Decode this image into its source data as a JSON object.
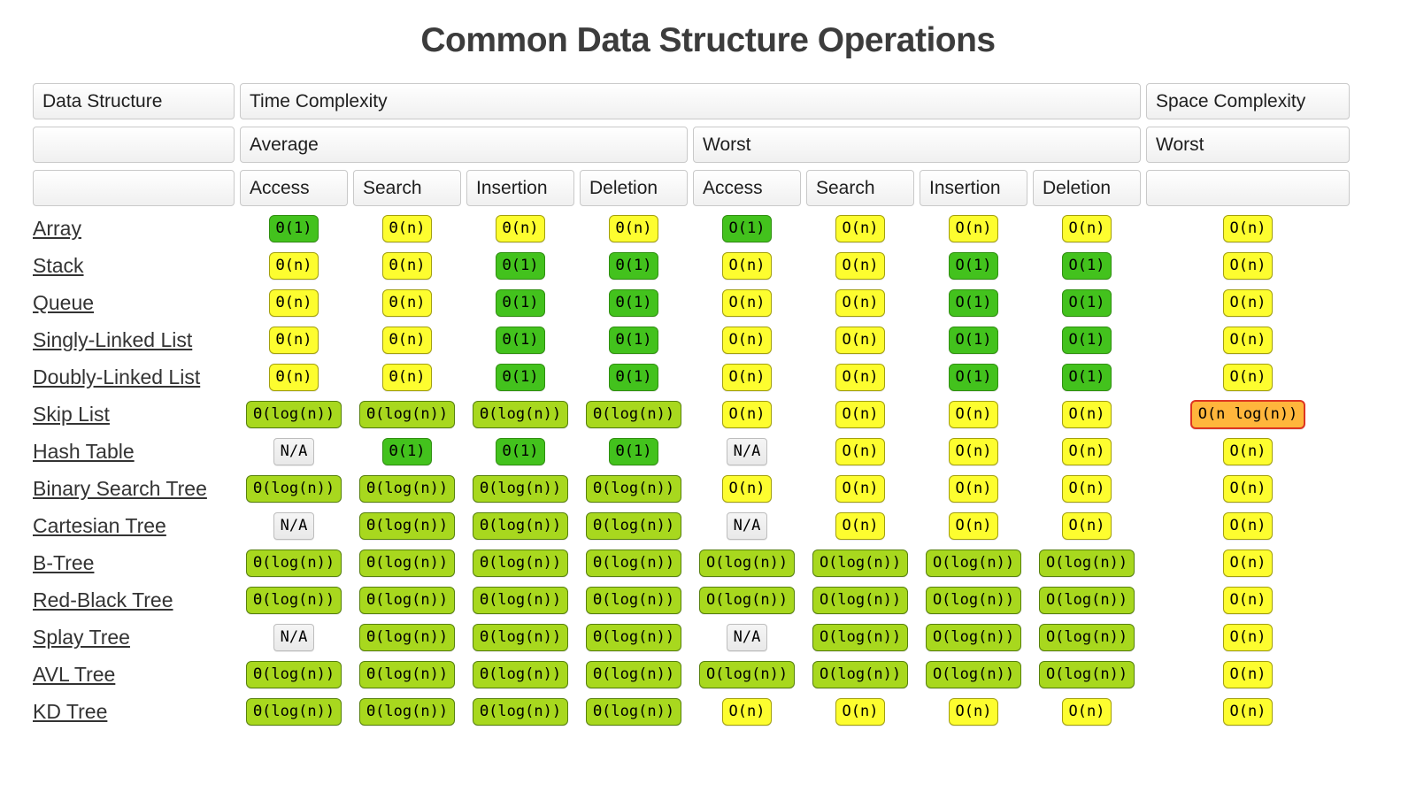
{
  "title": "Common Data Structure Operations",
  "colors": {
    "green_bg": "#43c21d",
    "green_border": "#2f8f10",
    "yellow_bg": "#fdfd2f",
    "yellow_border": "#a3a00e",
    "lightgreen_bg": "#a8d81e",
    "lightgreen_border": "#57810d",
    "orange_bg": "#ffb63c",
    "orange_border": "#dd3522",
    "na_bg": "#e9e9e9",
    "na_border": "#bdbdbd",
    "header_border": "#c9c9c9",
    "link_color": "#333333"
  },
  "table": {
    "header": {
      "data_structure": "Data Structure",
      "time_complexity": "Time Complexity",
      "space_complexity": "Space Complexity",
      "average": "Average",
      "worst": "Worst",
      "space_worst": "Worst",
      "operations": [
        "Access",
        "Search",
        "Insertion",
        "Deletion"
      ]
    },
    "rows": [
      {
        "name": "Array",
        "cells": [
          [
            "Θ(1)",
            "green"
          ],
          [
            "Θ(n)",
            "yellow"
          ],
          [
            "Θ(n)",
            "yellow"
          ],
          [
            "Θ(n)",
            "yellow"
          ],
          [
            "O(1)",
            "green"
          ],
          [
            "O(n)",
            "yellow"
          ],
          [
            "O(n)",
            "yellow"
          ],
          [
            "O(n)",
            "yellow"
          ],
          [
            "O(n)",
            "yellow"
          ]
        ]
      },
      {
        "name": "Stack",
        "cells": [
          [
            "Θ(n)",
            "yellow"
          ],
          [
            "Θ(n)",
            "yellow"
          ],
          [
            "Θ(1)",
            "green"
          ],
          [
            "Θ(1)",
            "green"
          ],
          [
            "O(n)",
            "yellow"
          ],
          [
            "O(n)",
            "yellow"
          ],
          [
            "O(1)",
            "green"
          ],
          [
            "O(1)",
            "green"
          ],
          [
            "O(n)",
            "yellow"
          ]
        ]
      },
      {
        "name": "Queue",
        "cells": [
          [
            "Θ(n)",
            "yellow"
          ],
          [
            "Θ(n)",
            "yellow"
          ],
          [
            "Θ(1)",
            "green"
          ],
          [
            "Θ(1)",
            "green"
          ],
          [
            "O(n)",
            "yellow"
          ],
          [
            "O(n)",
            "yellow"
          ],
          [
            "O(1)",
            "green"
          ],
          [
            "O(1)",
            "green"
          ],
          [
            "O(n)",
            "yellow"
          ]
        ]
      },
      {
        "name": "Singly-Linked List",
        "cells": [
          [
            "Θ(n)",
            "yellow"
          ],
          [
            "Θ(n)",
            "yellow"
          ],
          [
            "Θ(1)",
            "green"
          ],
          [
            "Θ(1)",
            "green"
          ],
          [
            "O(n)",
            "yellow"
          ],
          [
            "O(n)",
            "yellow"
          ],
          [
            "O(1)",
            "green"
          ],
          [
            "O(1)",
            "green"
          ],
          [
            "O(n)",
            "yellow"
          ]
        ]
      },
      {
        "name": "Doubly-Linked List",
        "cells": [
          [
            "Θ(n)",
            "yellow"
          ],
          [
            "Θ(n)",
            "yellow"
          ],
          [
            "Θ(1)",
            "green"
          ],
          [
            "Θ(1)",
            "green"
          ],
          [
            "O(n)",
            "yellow"
          ],
          [
            "O(n)",
            "yellow"
          ],
          [
            "O(1)",
            "green"
          ],
          [
            "O(1)",
            "green"
          ],
          [
            "O(n)",
            "yellow"
          ]
        ]
      },
      {
        "name": "Skip List",
        "cells": [
          [
            "Θ(log(n))",
            "lightgreen"
          ],
          [
            "Θ(log(n))",
            "lightgreen"
          ],
          [
            "Θ(log(n))",
            "lightgreen"
          ],
          [
            "Θ(log(n))",
            "lightgreen"
          ],
          [
            "O(n)",
            "yellow"
          ],
          [
            "O(n)",
            "yellow"
          ],
          [
            "O(n)",
            "yellow"
          ],
          [
            "O(n)",
            "yellow"
          ],
          [
            "O(n log(n))",
            "orange"
          ]
        ]
      },
      {
        "name": "Hash Table",
        "cells": [
          [
            "N/A",
            "na"
          ],
          [
            "Θ(1)",
            "green"
          ],
          [
            "Θ(1)",
            "green"
          ],
          [
            "Θ(1)",
            "green"
          ],
          [
            "N/A",
            "na"
          ],
          [
            "O(n)",
            "yellow"
          ],
          [
            "O(n)",
            "yellow"
          ],
          [
            "O(n)",
            "yellow"
          ],
          [
            "O(n)",
            "yellow"
          ]
        ]
      },
      {
        "name": "Binary Search Tree",
        "cells": [
          [
            "Θ(log(n))",
            "lightgreen"
          ],
          [
            "Θ(log(n))",
            "lightgreen"
          ],
          [
            "Θ(log(n))",
            "lightgreen"
          ],
          [
            "Θ(log(n))",
            "lightgreen"
          ],
          [
            "O(n)",
            "yellow"
          ],
          [
            "O(n)",
            "yellow"
          ],
          [
            "O(n)",
            "yellow"
          ],
          [
            "O(n)",
            "yellow"
          ],
          [
            "O(n)",
            "yellow"
          ]
        ]
      },
      {
        "name": "Cartesian Tree",
        "cells": [
          [
            "N/A",
            "na"
          ],
          [
            "Θ(log(n))",
            "lightgreen"
          ],
          [
            "Θ(log(n))",
            "lightgreen"
          ],
          [
            "Θ(log(n))",
            "lightgreen"
          ],
          [
            "N/A",
            "na"
          ],
          [
            "O(n)",
            "yellow"
          ],
          [
            "O(n)",
            "yellow"
          ],
          [
            "O(n)",
            "yellow"
          ],
          [
            "O(n)",
            "yellow"
          ]
        ]
      },
      {
        "name": "B-Tree",
        "cells": [
          [
            "Θ(log(n))",
            "lightgreen"
          ],
          [
            "Θ(log(n))",
            "lightgreen"
          ],
          [
            "Θ(log(n))",
            "lightgreen"
          ],
          [
            "Θ(log(n))",
            "lightgreen"
          ],
          [
            "O(log(n))",
            "lightgreen"
          ],
          [
            "O(log(n))",
            "lightgreen"
          ],
          [
            "O(log(n))",
            "lightgreen"
          ],
          [
            "O(log(n))",
            "lightgreen"
          ],
          [
            "O(n)",
            "yellow"
          ]
        ]
      },
      {
        "name": "Red-Black Tree",
        "cells": [
          [
            "Θ(log(n))",
            "lightgreen"
          ],
          [
            "Θ(log(n))",
            "lightgreen"
          ],
          [
            "Θ(log(n))",
            "lightgreen"
          ],
          [
            "Θ(log(n))",
            "lightgreen"
          ],
          [
            "O(log(n))",
            "lightgreen"
          ],
          [
            "O(log(n))",
            "lightgreen"
          ],
          [
            "O(log(n))",
            "lightgreen"
          ],
          [
            "O(log(n))",
            "lightgreen"
          ],
          [
            "O(n)",
            "yellow"
          ]
        ]
      },
      {
        "name": "Splay Tree",
        "cells": [
          [
            "N/A",
            "na"
          ],
          [
            "Θ(log(n))",
            "lightgreen"
          ],
          [
            "Θ(log(n))",
            "lightgreen"
          ],
          [
            "Θ(log(n))",
            "lightgreen"
          ],
          [
            "N/A",
            "na"
          ],
          [
            "O(log(n))",
            "lightgreen"
          ],
          [
            "O(log(n))",
            "lightgreen"
          ],
          [
            "O(log(n))",
            "lightgreen"
          ],
          [
            "O(n)",
            "yellow"
          ]
        ]
      },
      {
        "name": "AVL Tree",
        "cells": [
          [
            "Θ(log(n))",
            "lightgreen"
          ],
          [
            "Θ(log(n))",
            "lightgreen"
          ],
          [
            "Θ(log(n))",
            "lightgreen"
          ],
          [
            "Θ(log(n))",
            "lightgreen"
          ],
          [
            "O(log(n))",
            "lightgreen"
          ],
          [
            "O(log(n))",
            "lightgreen"
          ],
          [
            "O(log(n))",
            "lightgreen"
          ],
          [
            "O(log(n))",
            "lightgreen"
          ],
          [
            "O(n)",
            "yellow"
          ]
        ]
      },
      {
        "name": "KD Tree",
        "cells": [
          [
            "Θ(log(n))",
            "lightgreen"
          ],
          [
            "Θ(log(n))",
            "lightgreen"
          ],
          [
            "Θ(log(n))",
            "lightgreen"
          ],
          [
            "Θ(log(n))",
            "lightgreen"
          ],
          [
            "O(n)",
            "yellow"
          ],
          [
            "O(n)",
            "yellow"
          ],
          [
            "O(n)",
            "yellow"
          ],
          [
            "O(n)",
            "yellow"
          ],
          [
            "O(n)",
            "yellow"
          ]
        ]
      }
    ]
  }
}
